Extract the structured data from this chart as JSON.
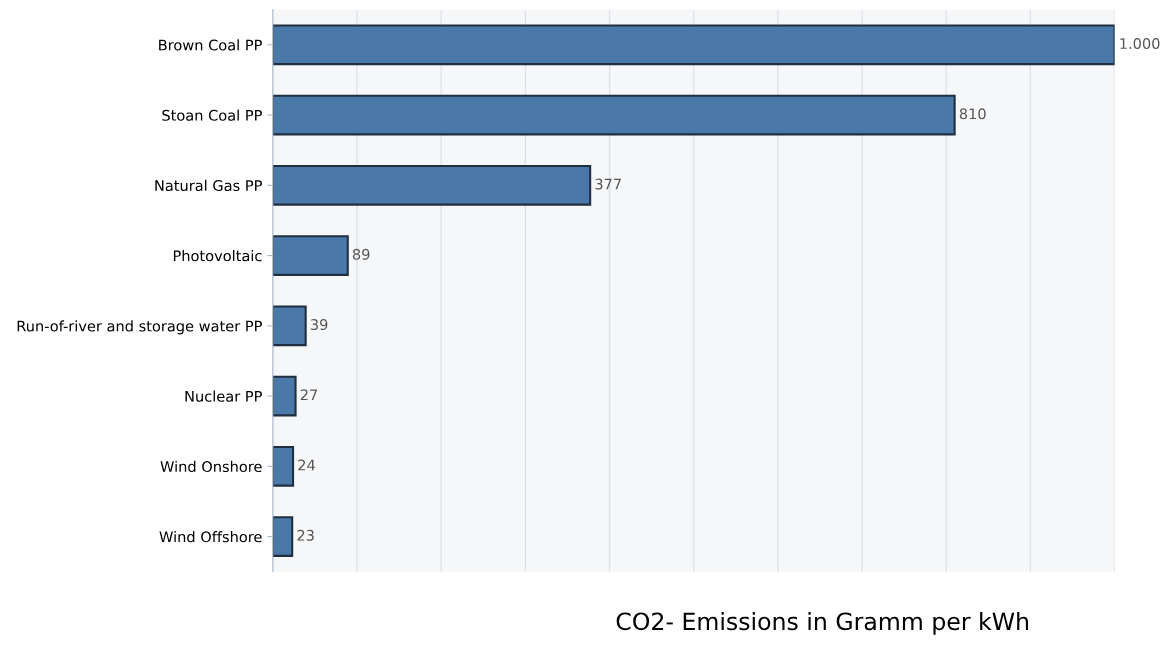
{
  "chart_data": {
    "type": "bar",
    "orientation": "horizontal",
    "categories": [
      "Brown Coal PP",
      "Stoan Coal PP",
      "Natural Gas PP",
      "Photovoltaic",
      "Run-of-river and storage water PP",
      "Nuclear PP",
      "Wind Onshore",
      "Wind Offshore"
    ],
    "values": [
      1000,
      810,
      377,
      89,
      39,
      27,
      24,
      23
    ],
    "value_labels": [
      "1.000",
      "810",
      "377",
      "89",
      "39",
      "27",
      "24",
      "23"
    ],
    "color": "#4a78a8",
    "xlabel": "CO2- Emissions in Gramm per kWh",
    "xlim": [
      0,
      1000
    ],
    "xticks": [
      {
        "value": 0,
        "label": null
      },
      {
        "value": 100,
        "label": null
      },
      {
        "value": 200,
        "label": null
      },
      {
        "value": 300,
        "label": null
      },
      {
        "value": 400,
        "label": null
      },
      {
        "value": 500,
        "label": null
      },
      {
        "value": 600,
        "label": null
      },
      {
        "value": 700,
        "label": null
      },
      {
        "value": 800,
        "label": null
      },
      {
        "value": 900,
        "label": null
      },
      {
        "value": 1000,
        "label": null
      }
    ],
    "grid": "x",
    "tick_labels": "y"
  }
}
